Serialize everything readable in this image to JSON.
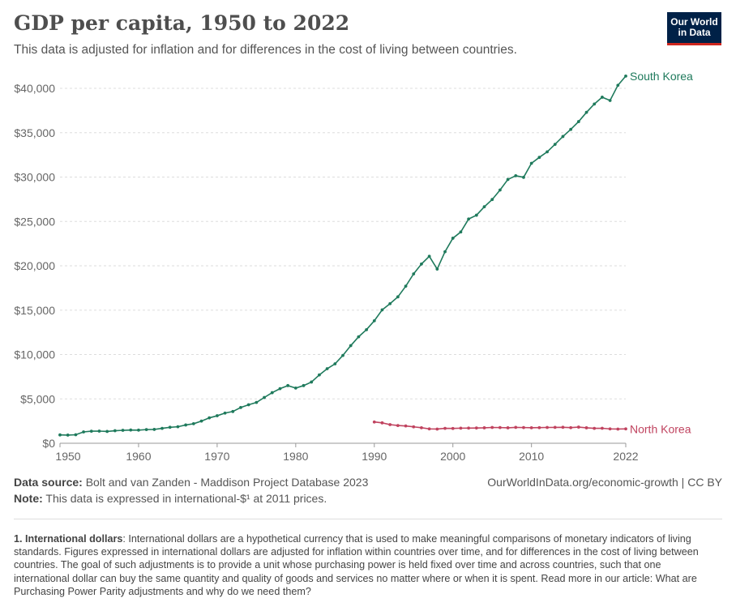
{
  "header": {
    "title": "GDP per capita, 1950 to 2022",
    "subtitle": "This data is adjusted for inflation and for differences in the cost of living between countries.",
    "logo_line1": "Our World",
    "logo_line2": "in Data"
  },
  "footer": {
    "source_label": "Data source:",
    "source": "Bolt and van Zanden - Maddison Project Database 2023",
    "note_label": "Note:",
    "note": "This data is expressed in international-$¹ at 2011 prices.",
    "link": "OurWorldInData.org/economic-growth | CC BY",
    "footnote_label": "1. International dollars",
    "footnote": ": International dollars are a hypothetical currency that is used to make meaningful comparisons of monetary indicators of living standards. Figures expressed in international dollars are adjusted for inflation within countries over time, and for differences in the cost of living between countries. The goal of such adjustments is to provide a unit whose purchasing power is held fixed over time and across countries, such that one international dollar can buy the same quantity and quality of goods and services no matter where or when it is spent. Read more in our article: What are Purchasing Power Parity adjustments and why do we need them?"
  },
  "chart_data": {
    "type": "line",
    "title": "GDP per capita, 1950 to 2022",
    "xlim": [
      1950,
      2022
    ],
    "ylim": [
      0,
      40000
    ],
    "grid": "horizontal dashed",
    "legend": "line-end labels",
    "x_ticks": [
      "1950",
      "1960",
      "1970",
      "1980",
      "1990",
      "2000",
      "2010",
      "2022"
    ],
    "x_tick_values": [
      1950,
      1960,
      1970,
      1980,
      1990,
      2000,
      2010,
      2022
    ],
    "y_ticks": [
      "$0",
      "$5,000",
      "$10,000",
      "$15,000",
      "$20,000",
      "$25,000",
      "$30,000",
      "$35,000",
      "$40,000"
    ],
    "y_tick_values": [
      0,
      5000,
      10000,
      15000,
      20000,
      25000,
      30000,
      35000,
      40000
    ],
    "series": [
      {
        "name": "South Korea",
        "color": "#1f7a5c",
        "start": 1950,
        "values": [
          940,
          920,
          960,
          1280,
          1360,
          1370,
          1330,
          1410,
          1460,
          1490,
          1480,
          1540,
          1560,
          1680,
          1800,
          1860,
          2060,
          2200,
          2500,
          2860,
          3100,
          3400,
          3580,
          4030,
          4340,
          4600,
          5160,
          5700,
          6150,
          6500,
          6220,
          6500,
          6900,
          7700,
          8400,
          8950,
          9900,
          11000,
          12000,
          12800,
          13800,
          15030,
          15730,
          16500,
          17700,
          19090,
          20200,
          21070,
          19630,
          21590,
          23110,
          23810,
          25270,
          25700,
          26650,
          27470,
          28540,
          29730,
          30150,
          29970,
          31550,
          32220,
          32840,
          33690,
          34570,
          35370,
          36250,
          37290,
          38230,
          39000,
          38630,
          40340,
          41380
        ]
      },
      {
        "name": "North Korea",
        "color": "#c0435f",
        "start": 1990,
        "values": [
          2400,
          2300,
          2100,
          2000,
          1950,
          1850,
          1750,
          1620,
          1600,
          1680,
          1670,
          1700,
          1710,
          1720,
          1740,
          1780,
          1770,
          1740,
          1790,
          1770,
          1750,
          1760,
          1780,
          1790,
          1800,
          1760,
          1820,
          1740,
          1680,
          1690,
          1620,
          1600,
          1620
        ]
      }
    ]
  }
}
